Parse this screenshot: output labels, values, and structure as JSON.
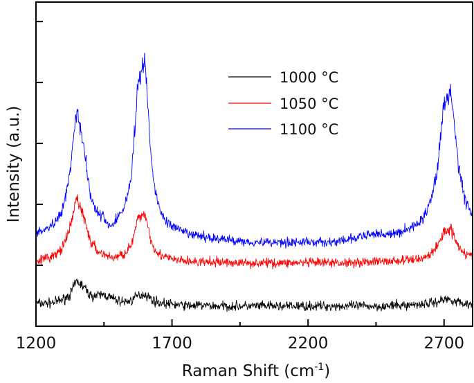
{
  "chart_data": {
    "type": "line",
    "title": "",
    "xlabel": "Raman Shift (cm",
    "xlabel_sup": "-1",
    "xlabel_close": ")",
    "ylabel": "Intensity (a.u.)",
    "xlim": [
      1200,
      2805
    ],
    "ylim": [
      0,
      5.32
    ],
    "x_ticks": [
      1200,
      1700,
      2200,
      2700
    ],
    "x_minor_ticks": [
      1450,
      1950,
      2450
    ],
    "y_ticks": [
      1,
      2,
      3,
      4,
      5
    ],
    "y_tick_labels_shown": false,
    "grid": false,
    "legend_position": "top-center",
    "x": [
      1200,
      1225,
      1250,
      1275,
      1300,
      1325,
      1350,
      1375,
      1400,
      1425,
      1450,
      1475,
      1500,
      1525,
      1550,
      1575,
      1600,
      1625,
      1650,
      1675,
      1700,
      1725,
      1750,
      1775,
      1800,
      1825,
      1850,
      1875,
      1900,
      1925,
      1950,
      1975,
      2000,
      2025,
      2050,
      2075,
      2100,
      2125,
      2150,
      2175,
      2200,
      2225,
      2250,
      2275,
      2300,
      2325,
      2350,
      2375,
      2400,
      2425,
      2450,
      2475,
      2500,
      2525,
      2550,
      2575,
      2600,
      2625,
      2650,
      2675,
      2700,
      2725,
      2750,
      2775,
      2800
    ],
    "series": [
      {
        "name": "1000 °C",
        "color": "#000000",
        "values": [
          0.38,
          0.37,
          0.38,
          0.4,
          0.44,
          0.52,
          0.74,
          0.65,
          0.5,
          0.5,
          0.52,
          0.47,
          0.42,
          0.4,
          0.42,
          0.5,
          0.53,
          0.44,
          0.39,
          0.37,
          0.36,
          0.35,
          0.34,
          0.34,
          0.34,
          0.34,
          0.33,
          0.33,
          0.33,
          0.33,
          0.33,
          0.33,
          0.33,
          0.33,
          0.33,
          0.33,
          0.33,
          0.33,
          0.33,
          0.33,
          0.33,
          0.33,
          0.33,
          0.33,
          0.33,
          0.33,
          0.33,
          0.33,
          0.33,
          0.33,
          0.33,
          0.33,
          0.33,
          0.34,
          0.34,
          0.35,
          0.36,
          0.37,
          0.38,
          0.4,
          0.44,
          0.44,
          0.4,
          0.37,
          0.36
        ]
      },
      {
        "name": "1050 °C",
        "color": "#ff0000",
        "values": [
          1.09,
          1.1,
          1.13,
          1.18,
          1.3,
          1.6,
          2.12,
          1.81,
          1.39,
          1.24,
          1.18,
          1.13,
          1.14,
          1.2,
          1.32,
          1.75,
          1.87,
          1.37,
          1.19,
          1.13,
          1.1,
          1.08,
          1.07,
          1.06,
          1.05,
          1.05,
          1.05,
          1.05,
          1.05,
          1.04,
          1.04,
          1.04,
          1.04,
          1.04,
          1.04,
          1.04,
          1.04,
          1.04,
          1.04,
          1.04,
          1.04,
          1.04,
          1.04,
          1.04,
          1.04,
          1.04,
          1.05,
          1.05,
          1.05,
          1.06,
          1.06,
          1.06,
          1.07,
          1.07,
          1.08,
          1.09,
          1.1,
          1.13,
          1.18,
          1.31,
          1.56,
          1.6,
          1.35,
          1.2,
          1.14
        ]
      },
      {
        "name": "1100 °C",
        "color": "#0000ff",
        "values": [
          1.53,
          1.56,
          1.62,
          1.72,
          1.95,
          2.55,
          3.59,
          2.97,
          2.15,
          1.87,
          1.77,
          1.63,
          1.78,
          1.96,
          2.43,
          3.97,
          4.4,
          2.62,
          1.97,
          1.74,
          1.64,
          1.58,
          1.53,
          1.5,
          1.48,
          1.46,
          1.45,
          1.43,
          1.42,
          1.41,
          1.4,
          1.39,
          1.38,
          1.38,
          1.38,
          1.38,
          1.38,
          1.38,
          1.38,
          1.38,
          1.38,
          1.38,
          1.38,
          1.38,
          1.38,
          1.4,
          1.42,
          1.45,
          1.47,
          1.5,
          1.52,
          1.52,
          1.5,
          1.52,
          1.57,
          1.61,
          1.67,
          1.79,
          2.03,
          2.58,
          3.65,
          3.85,
          2.75,
          2.11,
          1.83
        ]
      }
    ]
  }
}
